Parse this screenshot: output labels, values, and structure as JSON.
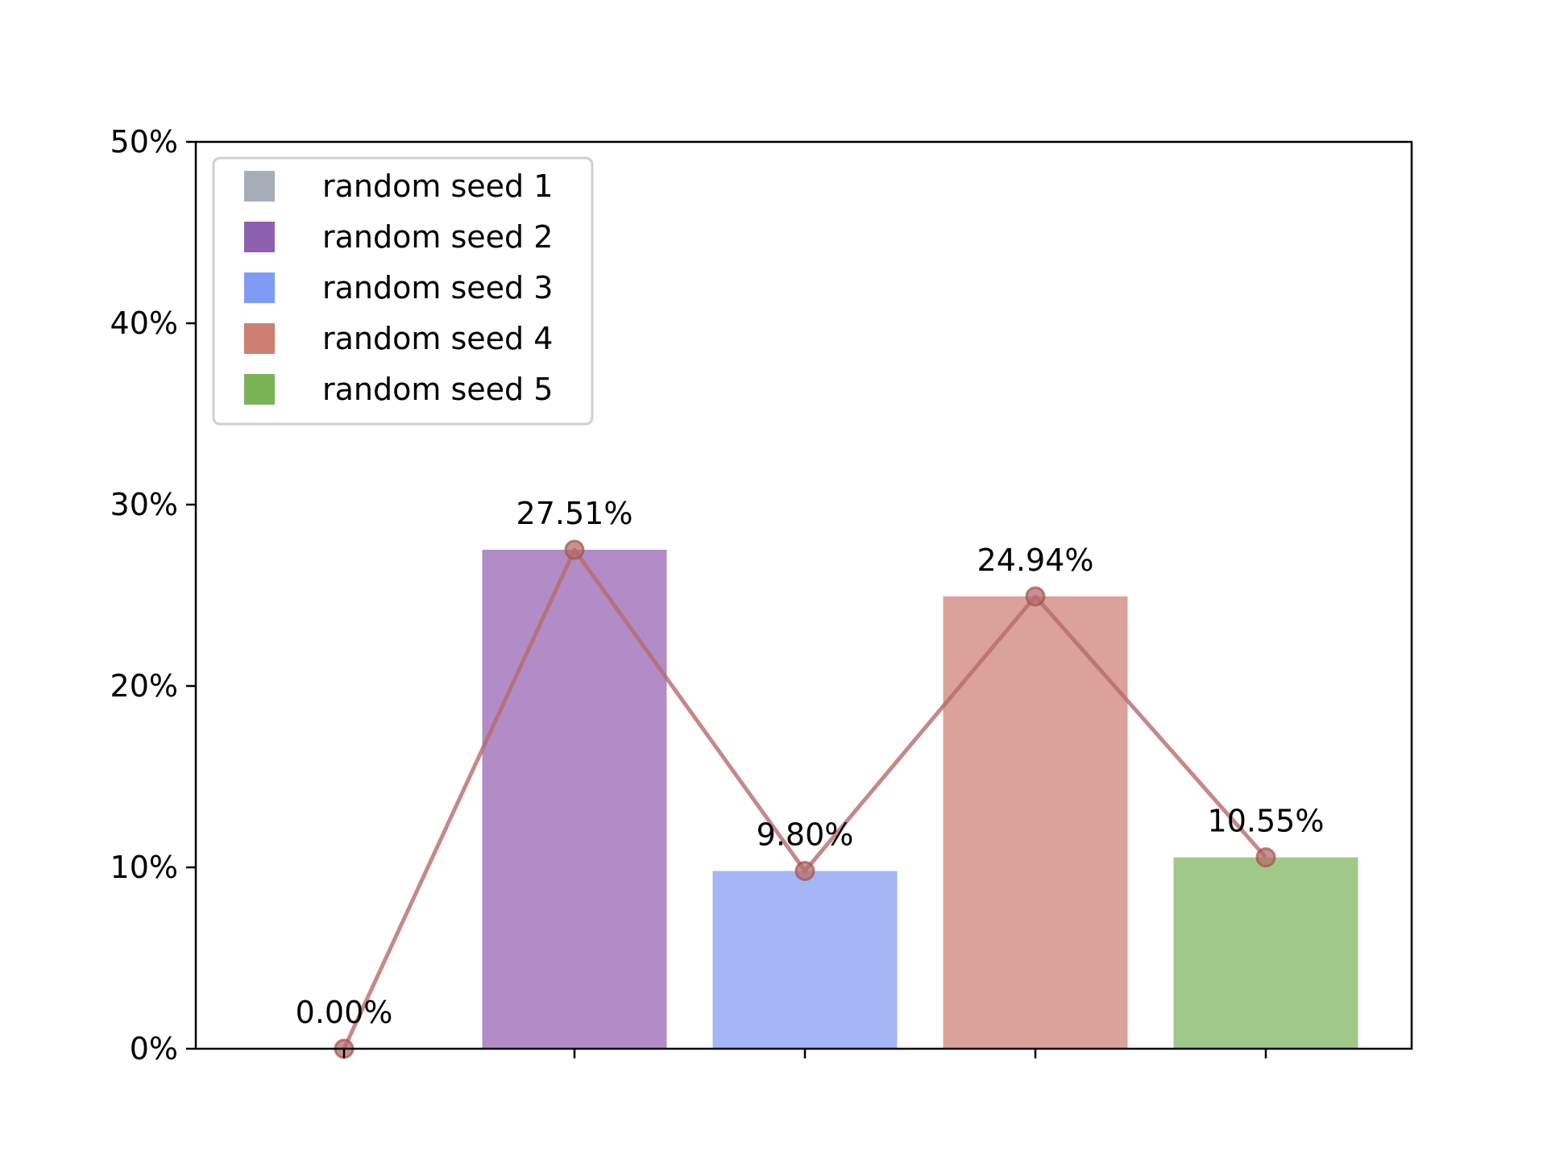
{
  "chart_data": {
    "type": "bar",
    "categories": [
      "",
      "",
      "",
      "",
      ""
    ],
    "values": [
      0.0,
      27.51,
      9.8,
      24.94,
      10.55
    ],
    "value_labels": [
      "0.00%",
      "27.51%",
      "9.80%",
      "24.94%",
      "10.55%"
    ],
    "bar_colors": [
      "#a7aeb8",
      "#b18cc7",
      "#a4b6f5",
      "#dba29b",
      "#a0c989"
    ],
    "line_overlay": {
      "values": [
        0.0,
        27.51,
        9.8,
        24.94,
        10.55
      ],
      "color": "#b76c6a",
      "marker": "circle"
    },
    "legend": {
      "placement": "top-left",
      "entries": [
        {
          "label": "random seed 1",
          "color": "#a7aeb8"
        },
        {
          "label": "random seed 2",
          "color": "#9060b0"
        },
        {
          "label": "random seed 3",
          "color": "#7f9cf5"
        },
        {
          "label": "random seed 4",
          "color": "#cd7f72"
        },
        {
          "label": "random seed 5",
          "color": "#7ab356"
        }
      ]
    },
    "ylim": [
      0,
      50
    ],
    "yticks": [
      0,
      10,
      20,
      30,
      40,
      50
    ],
    "ytick_labels": [
      "0%",
      "10%",
      "20%",
      "30%",
      "40%",
      "50%"
    ],
    "title": "",
    "xlabel": "",
    "ylabel": "",
    "grid": false
  }
}
